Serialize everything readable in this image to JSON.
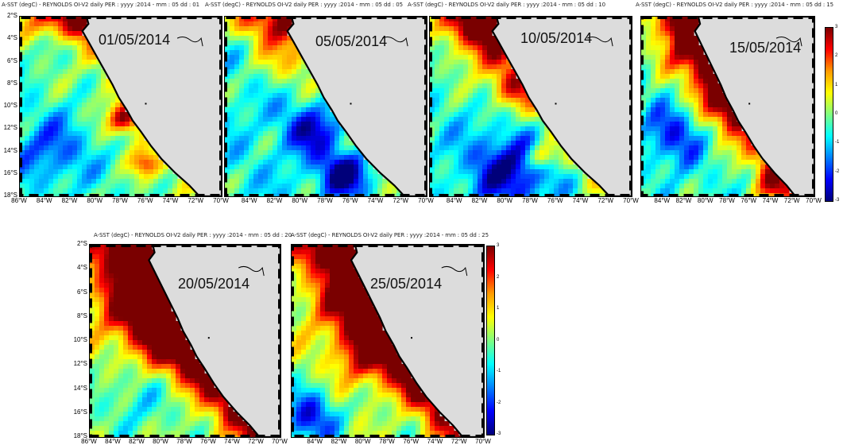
{
  "panels": [
    {
      "title": "A-SST (degC) - REYNOLDS OI-V2 daily  PER : yyyy :2014 -  mm : 05  dd : 01",
      "date": "01/05/2014",
      "y_labels": [
        "2°S",
        "4°S",
        "6°S",
        "8°S",
        "10°S",
        "12°S",
        "14°S",
        "16°S",
        "18°S"
      ],
      "x_labels": [
        "86°W",
        "84°W",
        "82°W",
        "80°W",
        "78°W",
        "76°W",
        "74°W",
        "72°W",
        "70°W"
      ]
    },
    {
      "title": "A-SST (degC) - REYNOLDS OI-V2 daily  PER : yyyy :2014 -  mm : 05  dd : 05",
      "date": "05/05/2014",
      "y_labels": [],
      "x_labels": [
        "84°W",
        "82°W",
        "80°W",
        "78°W",
        "76°W",
        "74°W",
        "72°W",
        "70°W"
      ]
    },
    {
      "title": "A-SST (degC) - REYNOLDS OI-V2 daily  PER : yyyy :2014 -  mm : 05  dd : 10",
      "date": "10/05/2014",
      "y_labels": [],
      "x_labels": [
        "84°W",
        "82°W",
        "80°W",
        "78°W",
        "76°W",
        "74°W",
        "72°W",
        "70°W"
      ]
    },
    {
      "title": "A-SST (degC) - REYNOLDS OI-V2 daily  PER : yyyy :2014 -  mm : 05  dd : 15",
      "date": "15/05/2014",
      "y_labels": [],
      "x_labels": [
        "84°W",
        "82°W",
        "80°W",
        "78°W",
        "76°W",
        "74°W",
        "72°W",
        "70°W"
      ]
    },
    {
      "title": "A-SST (degC) - REYNOLDS OI-V2 daily  PER : yyyy :2014 -  mm : 05  dd : 20",
      "date": "20/05/2014",
      "y_labels": [
        "2°S",
        "4°S",
        "6°S",
        "8°S",
        "10°S",
        "12°S",
        "14°S",
        "16°S",
        "18°S"
      ],
      "x_labels": [
        "86°W",
        "84°W",
        "82°W",
        "80°W",
        "78°W",
        "76°W",
        "74°W",
        "72°W",
        "70°W"
      ]
    },
    {
      "title": "A-SST (degC) - REYNOLDS OI-V2 daily  PER : yyyy :2014 -  mm : 05  dd : 25",
      "date": "25/05/2014",
      "y_labels": [],
      "x_labels": [
        "84°W",
        "82°W",
        "80°W",
        "78°W",
        "76°W",
        "74°W",
        "72°W",
        "70°W"
      ]
    }
  ],
  "colorbar": {
    "ticks": [
      "3",
      "2",
      "1",
      "0",
      "-1",
      "-2",
      "-3"
    ],
    "colors": [
      "#7a0000",
      "#ff0000",
      "#ff9a00",
      "#ffff00",
      "#80ff80",
      "#00ffff",
      "#0080ff",
      "#0000ff",
      "#00007a"
    ]
  },
  "colors": {
    "land": "#dcdcdc",
    "frame": "#000000",
    "coast": "#000000"
  }
}
